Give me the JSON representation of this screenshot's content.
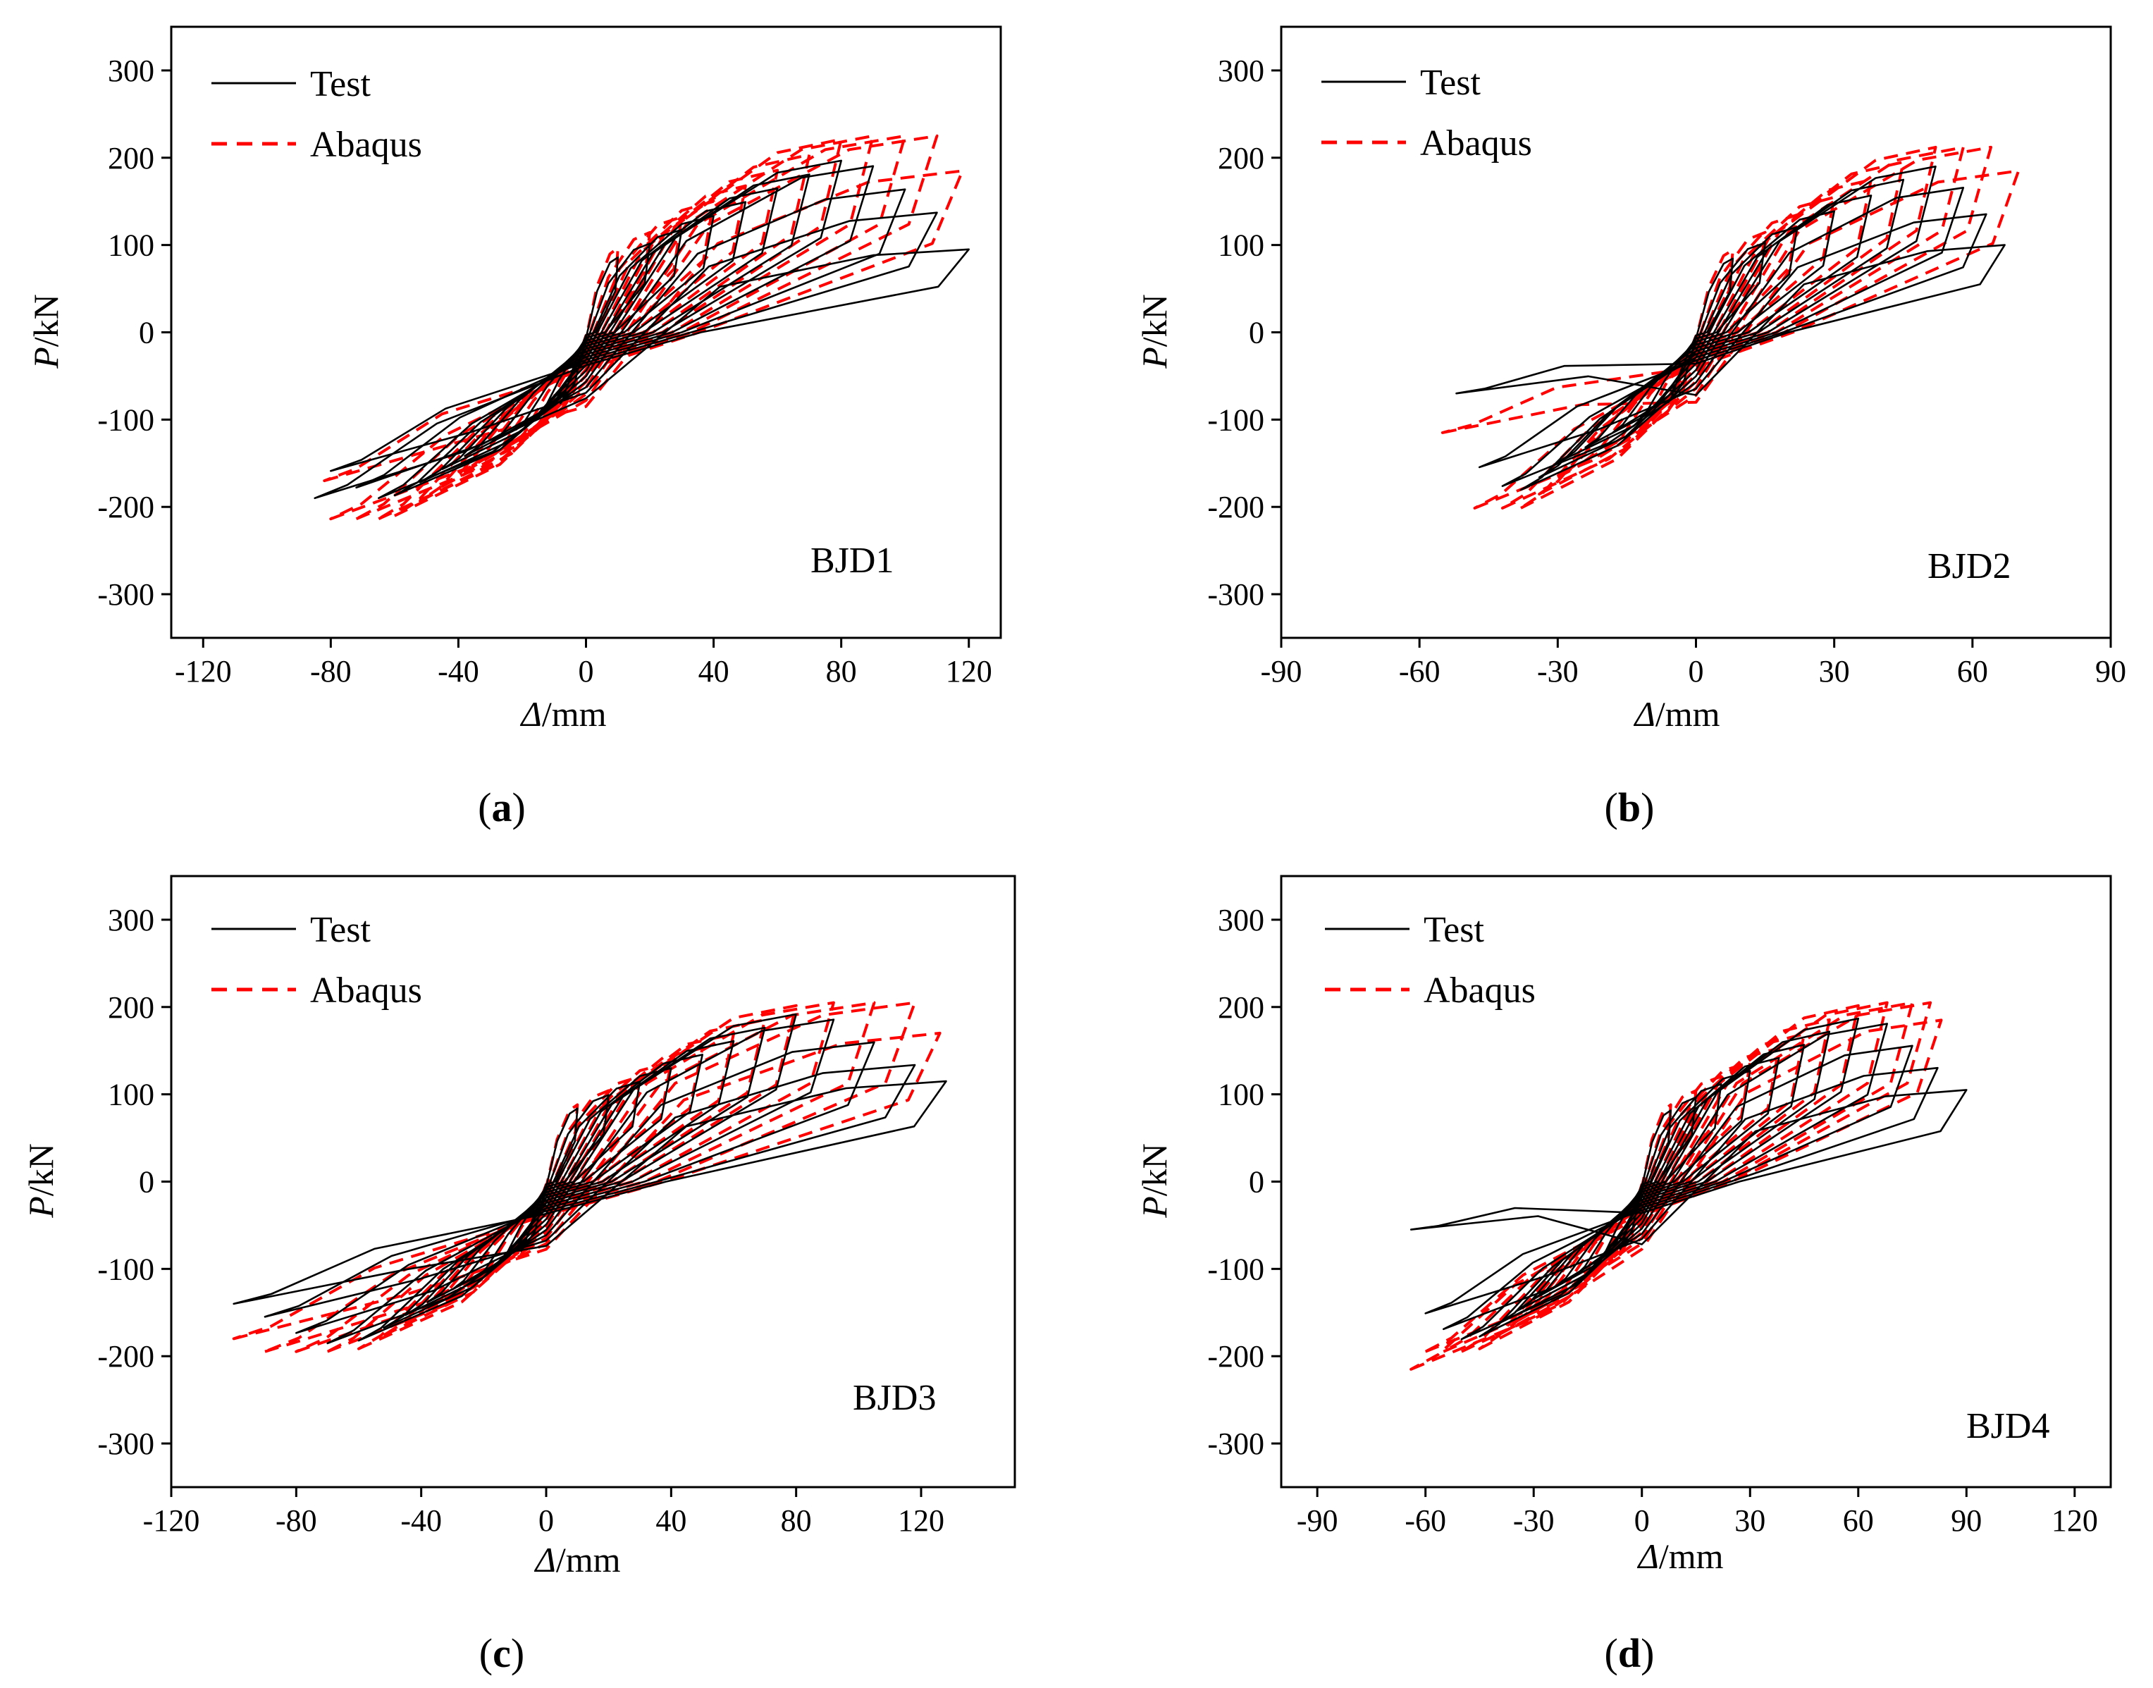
{
  "figure": {
    "legend": {
      "test_label": "Test",
      "abaqus_label": "Abaqus",
      "test_color": "#000000",
      "abaqus_color": "#ff0000"
    },
    "axis_titles": {
      "y_var": "P",
      "y_unit": "/kN",
      "x_var": "Δ",
      "x_unit": "/mm"
    }
  },
  "chart_data": [
    {
      "type": "line",
      "caption": {
        "open": "(",
        "letter": "a",
        "close": ")"
      },
      "specimen": "BJD1",
      "xlabel": "Δ/mm",
      "ylabel": "P/kN",
      "xlim": [
        -130,
        130
      ],
      "ylim": [
        -350,
        350
      ],
      "xticks": [
        -120,
        -80,
        -40,
        0,
        40,
        80,
        120
      ],
      "yticks": [
        -300,
        -200,
        -100,
        0,
        100,
        200,
        300
      ],
      "xtick_labels": [
        "-120",
        "-80",
        "-40",
        "0",
        "40",
        "80",
        "120"
      ],
      "ytick_labels": [
        "-300",
        "-200",
        "-100",
        "0",
        "100",
        "200",
        "300"
      ],
      "series": [
        {
          "name": "Test",
          "peak_pos": [
            120,
            95
          ],
          "peak_neg": [
            -85,
            -190
          ],
          "amplitude_pos": [
            10,
            20,
            30,
            40,
            50,
            60,
            70,
            80,
            90,
            100,
            110,
            120
          ],
          "amplitude_neg": [
            -8,
            -15,
            -22,
            -30,
            -38,
            -45,
            -52,
            -60,
            -65,
            -72,
            -80,
            -85
          ],
          "peak_force": 200
        },
        {
          "name": "Abaqus",
          "peak_pos": [
            118,
            185
          ],
          "peak_neg": [
            -82,
            -170
          ],
          "amplitude_pos": [
            10,
            20,
            30,
            40,
            50,
            60,
            70,
            80,
            90,
            100,
            110,
            118
          ],
          "amplitude_neg": [
            -8,
            -15,
            -22,
            -30,
            -38,
            -45,
            -52,
            -60,
            -65,
            -72,
            -80,
            -82
          ],
          "peak_force": 225
        }
      ]
    },
    {
      "type": "line",
      "caption": {
        "open": "(",
        "letter": "b",
        "close": ")"
      },
      "specimen": "BJD2",
      "xlabel": "Δ/mm",
      "ylabel": "P/kN",
      "xlim": [
        -90,
        90
      ],
      "ylim": [
        -350,
        350
      ],
      "xticks": [
        -90,
        -60,
        -30,
        0,
        30,
        60,
        90
      ],
      "yticks": [
        -300,
        -200,
        -100,
        0,
        100,
        200,
        300
      ],
      "xtick_labels": [
        "-90",
        "-60",
        "-30",
        "0",
        "30",
        "60",
        "90"
      ],
      "ytick_labels": [
        "-300",
        "-200",
        "-100",
        "0",
        "100",
        "200",
        "300"
      ],
      "series": [
        {
          "name": "Test",
          "peak_pos": [
            67,
            100
          ],
          "peak_neg": [
            -52,
            -70
          ],
          "amplitude_pos": [
            8,
            15,
            22,
            30,
            38,
            45,
            52,
            58,
            63,
            67
          ],
          "amplitude_neg": [
            -6,
            -12,
            -18,
            -24,
            -30,
            -34,
            -38,
            -42,
            -47,
            -52
          ],
          "peak_force": 190
        },
        {
          "name": "Abaqus",
          "peak_pos": [
            70,
            185
          ],
          "peak_neg": [
            -55,
            -115
          ],
          "amplitude_pos": [
            8,
            15,
            22,
            30,
            38,
            45,
            52,
            58,
            64,
            70
          ],
          "amplitude_neg": [
            -6,
            -12,
            -18,
            -24,
            -30,
            -34,
            -38,
            -42,
            -48,
            -55
          ],
          "peak_force": 212
        }
      ]
    },
    {
      "type": "line",
      "caption": {
        "open": "(",
        "letter": "c",
        "close": ")"
      },
      "specimen": "BJD3",
      "xlabel": "Δ/mm",
      "ylabel": "P/kN",
      "xlim": [
        -120,
        150
      ],
      "ylim": [
        -350,
        350
      ],
      "xticks": [
        -120,
        -80,
        -40,
        0,
        40,
        80,
        120
      ],
      "yticks": [
        -300,
        -200,
        -100,
        0,
        100,
        200,
        300
      ],
      "xtick_labels": [
        "-120",
        "-80",
        "-40",
        "0",
        "40",
        "80",
        "120"
      ],
      "ytick_labels": [
        "-300",
        "-200",
        "-100",
        "0",
        "100",
        "200",
        "300"
      ],
      "series": [
        {
          "name": "Test",
          "peak_pos": [
            128,
            115
          ],
          "peak_neg": [
            -100,
            -140
          ],
          "amplitude_pos": [
            10,
            20,
            30,
            40,
            50,
            60,
            70,
            80,
            92,
            105,
            118,
            128
          ],
          "amplitude_neg": [
            -8,
            -15,
            -22,
            -30,
            -38,
            -45,
            -52,
            -60,
            -70,
            -80,
            -90,
            -100
          ],
          "peak_force": 195
        },
        {
          "name": "Abaqus",
          "peak_pos": [
            126,
            170
          ],
          "peak_neg": [
            -100,
            -180
          ],
          "amplitude_pos": [
            10,
            20,
            30,
            40,
            50,
            60,
            70,
            80,
            92,
            105,
            118,
            126
          ],
          "amplitude_neg": [
            -8,
            -15,
            -22,
            -30,
            -38,
            -45,
            -52,
            -60,
            -70,
            -80,
            -90,
            -100
          ],
          "peak_force": 205
        }
      ]
    },
    {
      "type": "line",
      "caption": {
        "open": "(",
        "letter": "d",
        "close": ")"
      },
      "specimen": "BJD4",
      "xlabel": "Δ/mm",
      "ylabel": "P/kN",
      "xlim": [
        -100,
        130
      ],
      "ylim": [
        -350,
        350
      ],
      "xticks": [
        -90,
        -60,
        -30,
        0,
        30,
        60,
        90,
        120
      ],
      "yticks": [
        -300,
        -200,
        -100,
        0,
        100,
        200,
        300
      ],
      "xtick_labels": [
        "-90",
        "-60",
        "-30",
        "0",
        "30",
        "60",
        "90",
        "120"
      ],
      "ytick_labels": [
        "-300",
        "-200",
        "-100",
        "0",
        "100",
        "200",
        "300"
      ],
      "series": [
        {
          "name": "Test",
          "peak_pos": [
            90,
            105
          ],
          "peak_neg": [
            -64,
            -55
          ],
          "amplitude_pos": [
            8,
            15,
            22,
            30,
            38,
            45,
            52,
            60,
            68,
            75,
            82,
            90
          ],
          "amplitude_neg": [
            -6,
            -12,
            -18,
            -24,
            -30,
            -35,
            -40,
            -45,
            -50,
            -55,
            -60,
            -64
          ],
          "peak_force": 190
        },
        {
          "name": "Abaqus",
          "peak_pos": [
            83,
            185
          ],
          "peak_neg": [
            -64,
            -215
          ],
          "amplitude_pos": [
            8,
            15,
            22,
            30,
            38,
            45,
            52,
            60,
            68,
            75,
            80,
            83
          ],
          "amplitude_neg": [
            -6,
            -12,
            -18,
            -24,
            -30,
            -35,
            -40,
            -45,
            -50,
            -55,
            -60,
            -64
          ],
          "peak_force": 205
        }
      ]
    }
  ]
}
